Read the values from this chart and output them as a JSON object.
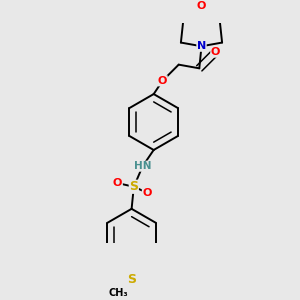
{
  "bg_color": "#e8e8e8",
  "atom_colors": {
    "C": "#000000",
    "N": "#0000cd",
    "O": "#ff0000",
    "S": "#ccaa00",
    "H": "#4a9090"
  },
  "bond_color": "#000000",
  "font_size": 8,
  "fig_size": [
    3.0,
    3.0
  ],
  "dpi": 100,
  "lw": 1.4,
  "lw_double": 1.1
}
